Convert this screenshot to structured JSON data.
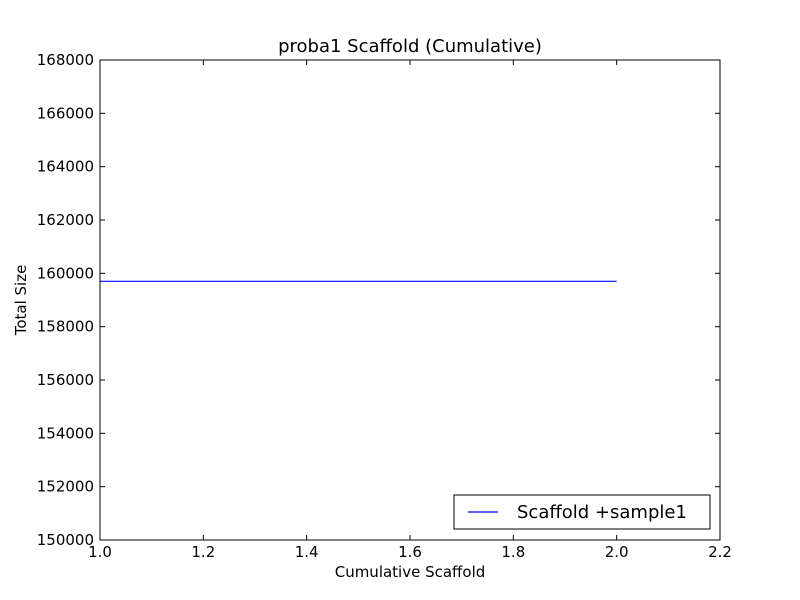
{
  "chart_data": {
    "type": "line",
    "title": "proba1 Scaffold (Cumulative)",
    "xlabel": "Cumulative Scaffold",
    "ylabel": "Total Size",
    "xlim": [
      1.0,
      2.2
    ],
    "ylim": [
      150000,
      168000
    ],
    "xticks": [
      "1.0",
      "1.2",
      "1.4",
      "1.6",
      "1.8",
      "2.0",
      "2.2"
    ],
    "yticks": [
      "150000",
      "152000",
      "154000",
      "156000",
      "158000",
      "160000",
      "162000",
      "164000",
      "166000",
      "168000"
    ],
    "grid": false,
    "legend_position": "lower-right",
    "series": [
      {
        "name": "Scaffold +sample1",
        "color": "#0000ff",
        "x": [
          1,
          2
        ],
        "y": [
          159700,
          159700
        ]
      }
    ]
  }
}
